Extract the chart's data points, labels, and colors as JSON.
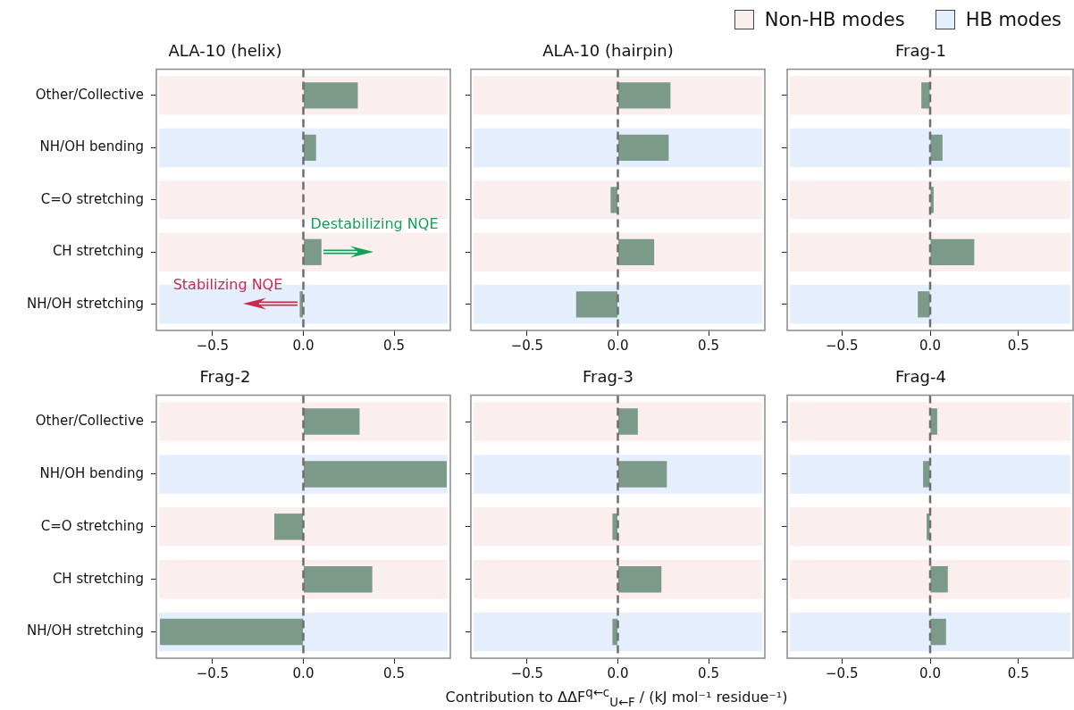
{
  "chart_data": [
    {
      "type": "bar",
      "orientation": "horizontal",
      "title": "ALA-10 (helix)",
      "categories": [
        "Other/Collective",
        "NH/OH bending",
        "C=O stretching",
        "CH stretching",
        "NH/OH stretching"
      ],
      "series": [
        {
          "color": "#7b9a8a",
          "values": [
            0.3,
            0.07,
            0.0,
            0.1,
            -0.02
          ]
        }
      ],
      "xlim": [
        -0.81,
        0.81
      ],
      "xticks": [
        {
          "value": -0.5,
          "label": "−0.5"
        },
        {
          "value": 0,
          "label": "0.0"
        },
        {
          "value": 0.5,
          "label": "0.5"
        }
      ],
      "grid": false,
      "ref_lines": [
        {
          "axis": "x",
          "value": 0,
          "line_style": "dashed",
          "color": "#6e6e6e"
        }
      ],
      "bands": [
        {
          "axis": "y",
          "from": "Other/Collective",
          "to": "Other/Collective",
          "color": "#fbeeee"
        },
        {
          "axis": "y",
          "from": "NH/OH bending",
          "to": "NH/OH bending",
          "color": "#e5eefd"
        },
        {
          "axis": "y",
          "from": "C=O stretching",
          "to": "C=O stretching",
          "color": "#fbeeee"
        },
        {
          "axis": "y",
          "from": "CH stretching",
          "to": "CH stretching",
          "color": "#fbeeee"
        },
        {
          "axis": "y",
          "from": "NH/OH stretching",
          "to": "NH/OH stretching",
          "color": "#e5eefd"
        }
      ],
      "annotations": [
        "Destabilizing NQE",
        "Stabilizing NQE"
      ]
    },
    {
      "type": "bar",
      "orientation": "horizontal",
      "title": "ALA-10 (hairpin)",
      "categories": [
        "Other/Collective",
        "NH/OH bending",
        "C=O stretching",
        "CH stretching",
        "NH/OH stretching"
      ],
      "series": [
        {
          "color": "#7b9a8a",
          "values": [
            0.29,
            0.28,
            -0.04,
            0.2,
            -0.23
          ]
        }
      ],
      "xlim": [
        -0.81,
        0.81
      ],
      "xticks": [
        {
          "value": -0.5,
          "label": "−0.5"
        },
        {
          "value": 0,
          "label": "0.0"
        },
        {
          "value": 0.5,
          "label": "0.5"
        }
      ],
      "grid": false,
      "tick_labels": "x",
      "ref_lines": [
        {
          "axis": "x",
          "value": 0,
          "line_style": "dashed",
          "color": "#6e6e6e"
        }
      ],
      "bands": [
        {
          "axis": "y",
          "from": "Other/Collective",
          "to": "Other/Collective",
          "color": "#fbeeee"
        },
        {
          "axis": "y",
          "from": "NH/OH bending",
          "to": "NH/OH bending",
          "color": "#e5eefd"
        },
        {
          "axis": "y",
          "from": "C=O stretching",
          "to": "C=O stretching",
          "color": "#fbeeee"
        },
        {
          "axis": "y",
          "from": "CH stretching",
          "to": "CH stretching",
          "color": "#fbeeee"
        },
        {
          "axis": "y",
          "from": "NH/OH stretching",
          "to": "NH/OH stretching",
          "color": "#e5eefd"
        }
      ]
    },
    {
      "type": "bar",
      "orientation": "horizontal",
      "title": "Frag-1",
      "categories": [
        "Other/Collective",
        "NH/OH bending",
        "C=O stretching",
        "CH stretching",
        "NH/OH stretching"
      ],
      "series": [
        {
          "color": "#7b9a8a",
          "values": [
            -0.05,
            0.07,
            0.02,
            0.25,
            -0.07
          ]
        }
      ],
      "xlim": [
        -0.81,
        0.81
      ],
      "xticks": [
        {
          "value": -0.5,
          "label": "−0.5"
        },
        {
          "value": 0,
          "label": "0.0"
        },
        {
          "value": 0.5,
          "label": "0.5"
        }
      ],
      "grid": false,
      "tick_labels": "x",
      "legend": "top right",
      "ref_lines": [
        {
          "axis": "x",
          "value": 0,
          "line_style": "dashed",
          "color": "#6e6e6e"
        }
      ],
      "bands": [
        {
          "axis": "y",
          "from": "Other/Collective",
          "to": "Other/Collective",
          "color": "#fbeeee",
          "label": "Non-HB modes"
        },
        {
          "axis": "y",
          "from": "NH/OH bending",
          "to": "NH/OH bending",
          "color": "#e5eefd",
          "label": "HB modes"
        },
        {
          "axis": "y",
          "from": "C=O stretching",
          "to": "C=O stretching",
          "color": "#fbeeee"
        },
        {
          "axis": "y",
          "from": "CH stretching",
          "to": "CH stretching",
          "color": "#fbeeee"
        },
        {
          "axis": "y",
          "from": "NH/OH stretching",
          "to": "NH/OH stretching",
          "color": "#e5eefd"
        }
      ]
    },
    {
      "type": "bar",
      "orientation": "horizontal",
      "title": "Frag-2",
      "categories": [
        "Other/Collective",
        "NH/OH bending",
        "C=O stretching",
        "CH stretching",
        "NH/OH stretching"
      ],
      "series": [
        {
          "color": "#7b9a8a",
          "values": [
            0.31,
            0.79,
            -0.16,
            0.38,
            -0.79
          ]
        }
      ],
      "xlim": [
        -0.81,
        0.81
      ],
      "xticks": [
        {
          "value": -0.5,
          "label": "−0.5"
        },
        {
          "value": 0,
          "label": "0.0"
        },
        {
          "value": 0.5,
          "label": "0.5"
        }
      ],
      "grid": false,
      "ref_lines": [
        {
          "axis": "x",
          "value": 0,
          "line_style": "dashed",
          "color": "#6e6e6e"
        }
      ],
      "bands": [
        {
          "axis": "y",
          "from": "Other/Collective",
          "to": "Other/Collective",
          "color": "#fbeeee"
        },
        {
          "axis": "y",
          "from": "NH/OH bending",
          "to": "NH/OH bending",
          "color": "#e5eefd"
        },
        {
          "axis": "y",
          "from": "C=O stretching",
          "to": "C=O stretching",
          "color": "#fbeeee"
        },
        {
          "axis": "y",
          "from": "CH stretching",
          "to": "CH stretching",
          "color": "#fbeeee"
        },
        {
          "axis": "y",
          "from": "NH/OH stretching",
          "to": "NH/OH stretching",
          "color": "#e5eefd"
        }
      ]
    },
    {
      "type": "bar",
      "orientation": "horizontal",
      "title": "Frag-3",
      "xlabel": "Contribution to ΔΔF$^{q←c}$$_{U←F}$ / (kJ mol⁻¹ residue⁻¹)",
      "categories": [
        "Other/Collective",
        "NH/OH bending",
        "C=O stretching",
        "CH stretching",
        "NH/OH stretching"
      ],
      "series": [
        {
          "color": "#7b9a8a",
          "values": [
            0.11,
            0.27,
            -0.03,
            0.24,
            -0.03
          ]
        }
      ],
      "xlim": [
        -0.81,
        0.81
      ],
      "xticks": [
        {
          "value": -0.5,
          "label": "−0.5"
        },
        {
          "value": 0,
          "label": "0.0"
        },
        {
          "value": 0.5,
          "label": "0.5"
        }
      ],
      "grid": false,
      "tick_labels": "x",
      "ref_lines": [
        {
          "axis": "x",
          "value": 0,
          "line_style": "dashed",
          "color": "#6e6e6e"
        }
      ],
      "bands": [
        {
          "axis": "y",
          "from": "Other/Collective",
          "to": "Other/Collective",
          "color": "#fbeeee"
        },
        {
          "axis": "y",
          "from": "NH/OH bending",
          "to": "NH/OH bending",
          "color": "#e5eefd"
        },
        {
          "axis": "y",
          "from": "C=O stretching",
          "to": "C=O stretching",
          "color": "#fbeeee"
        },
        {
          "axis": "y",
          "from": "CH stretching",
          "to": "CH stretching",
          "color": "#fbeeee"
        },
        {
          "axis": "y",
          "from": "NH/OH stretching",
          "to": "NH/OH stretching",
          "color": "#e5eefd"
        }
      ]
    },
    {
      "type": "bar",
      "orientation": "horizontal",
      "title": "Frag-4",
      "categories": [
        "Other/Collective",
        "NH/OH bending",
        "C=O stretching",
        "CH stretching",
        "NH/OH stretching"
      ],
      "series": [
        {
          "color": "#7b9a8a",
          "values": [
            0.04,
            -0.04,
            -0.02,
            0.1,
            0.09
          ]
        }
      ],
      "xlim": [
        -0.81,
        0.81
      ],
      "xticks": [
        {
          "value": -0.5,
          "label": "−0.5"
        },
        {
          "value": 0,
          "label": "0.0"
        },
        {
          "value": 0.5,
          "label": "0.5"
        }
      ],
      "grid": false,
      "tick_labels": "x",
      "ref_lines": [
        {
          "axis": "x",
          "value": 0,
          "line_style": "dashed",
          "color": "#6e6e6e"
        }
      ],
      "bands": [
        {
          "axis": "y",
          "from": "Other/Collective",
          "to": "Other/Collective",
          "color": "#fbeeee"
        },
        {
          "axis": "y",
          "from": "NH/OH bending",
          "to": "NH/OH bending",
          "color": "#e5eefd"
        },
        {
          "axis": "y",
          "from": "C=O stretching",
          "to": "C=O stretching",
          "color": "#fbeeee"
        },
        {
          "axis": "y",
          "from": "CH stretching",
          "to": "CH stretching",
          "color": "#fbeeee"
        },
        {
          "axis": "y",
          "from": "NH/OH stretching",
          "to": "NH/OH stretching",
          "color": "#e5eefd"
        }
      ]
    }
  ]
}
